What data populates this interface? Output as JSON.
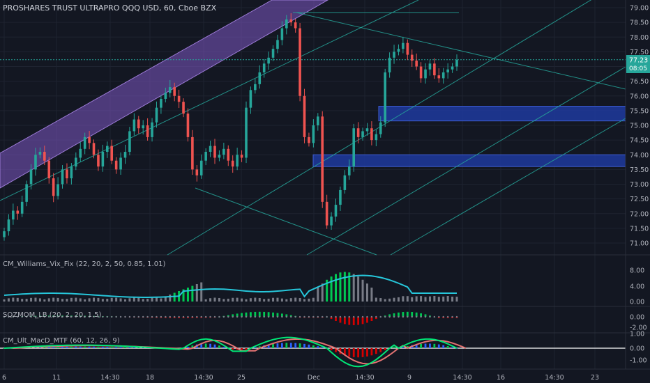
{
  "main_title": "PROSHARES TRUST ULTRAPRO QQQ USD, 60, Cboe BZX",
  "price_badge": {
    "value": "77.23",
    "countdown": "08:05",
    "color": "#26a69a"
  },
  "colors": {
    "background": "#131722",
    "up": "#26a69a",
    "down": "#ef5350",
    "channel_fill": "#7e57c2",
    "zone_fill": "#1e3a9e",
    "trendline": "#26a69a",
    "vix_line": "#26c6da",
    "macd_fast": "#00e676",
    "macd_slow": "#e57373"
  },
  "x_axis_labels": [
    "6",
    "11",
    "14:30",
    "18",
    "14:30",
    "25",
    "Dec",
    "14:30",
    "9",
    "14:30",
    "16",
    "14:30",
    "23"
  ],
  "panes": {
    "vix": {
      "title": "CM_Williams_Vix_Fix (22, 20, 2, 50, 0.85, 1.01)",
      "ticks": [
        "8.00",
        "4.00",
        "0.00"
      ]
    },
    "sqz": {
      "title": "SQZMOM_LB (20, 2, 20, 1.5)",
      "ticks": [
        "0.00",
        "-2.00"
      ]
    },
    "macd": {
      "title": "CM_Ult_MacD_MTF (60, 12, 26, 9)",
      "ticks": [
        "1.00",
        "0.00",
        "-1.00"
      ]
    }
  },
  "chart_data": [
    {
      "type": "candlestick",
      "title": "PROSHARES TRUST ULTRAPRO QQQ USD, 60, Cboe BZX",
      "y_ticks": [
        79.0,
        78.5,
        78.0,
        77.5,
        77.0,
        76.5,
        76.0,
        75.5,
        75.0,
        74.5,
        74.0,
        73.5,
        73.0,
        72.5,
        72.0,
        71.5,
        71.0
      ],
      "ylim": [
        70.75,
        79.2
      ],
      "last_price": 77.23,
      "closes": [
        71.4,
        71.8,
        72.1,
        72.0,
        72.4,
        73.0,
        73.5,
        74.0,
        74.1,
        73.8,
        73.2,
        72.6,
        73.0,
        73.5,
        73.2,
        73.6,
        73.9,
        74.2,
        74.6,
        74.4,
        74.0,
        73.6,
        74.1,
        74.3,
        73.8,
        73.5,
        73.9,
        74.1,
        74.8,
        75.2,
        74.9,
        75.0,
        74.6,
        75.1,
        75.6,
        75.9,
        76.1,
        76.3,
        76.0,
        75.8,
        75.4,
        74.6,
        73.5,
        73.3,
        73.8,
        74.1,
        74.3,
        73.9,
        74.0,
        74.2,
        73.8,
        73.6,
        74.0,
        73.9,
        75.6,
        76.2,
        76.4,
        76.8,
        77.1,
        77.3,
        77.6,
        77.9,
        78.3,
        78.6,
        78.5,
        78.3,
        76.0,
        74.6,
        74.4,
        75.0,
        75.3,
        72.4,
        71.6,
        71.9,
        72.3,
        72.8,
        73.3,
        73.6,
        74.9,
        74.6,
        74.8,
        74.9,
        74.5,
        74.7,
        75.1,
        76.8,
        77.3,
        77.5,
        77.6,
        77.8,
        77.4,
        77.2,
        77.0,
        76.6,
        76.9,
        77.1,
        76.7,
        76.6,
        76.8,
        76.9,
        77.0,
        77.23
      ],
      "series": [
        {
          "name": "CM_Williams_Vix_Fix",
          "pane": "vix",
          "ylim": [
            0,
            10
          ],
          "kind": "histogram+line"
        },
        {
          "name": "SQZMOM_LB",
          "pane": "sqz",
          "ylim": [
            -2.5,
            1.5
          ],
          "kind": "histogram"
        },
        {
          "name": "CM_Ult_MacD_MTF",
          "pane": "macd",
          "ylim": [
            -1.6,
            1.4
          ],
          "kind": "histogram+lines"
        }
      ]
    }
  ]
}
